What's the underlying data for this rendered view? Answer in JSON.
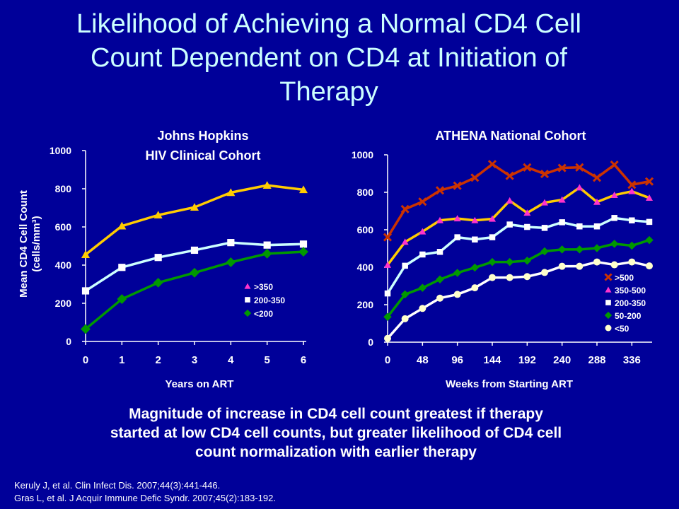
{
  "title_lines": [
    "Likelihood of Achieving a Normal CD4 Cell",
    "Count Dependent on CD4 at Initiation of",
    "Therapy"
  ],
  "caption_lines": [
    "Magnitude of increase in CD4 cell count greatest if therapy",
    "started at low CD4 cell counts, but greater likelihood of CD4 cell",
    "count normalization with earlier therapy"
  ],
  "references": [
    "Keruly J, et al. Clin Infect Dis. 2007;44(3):441-446.",
    "Gras L, et al. J Acquir Immune Defic Syndr. 2007;45(2):183-192."
  ],
  "chart_data": [
    {
      "type": "line",
      "title_lines": [
        "Johns Hopkins",
        "HIV Clinical Cohort"
      ],
      "xlabel": "Years on ART",
      "ylabel_line1": "Mean CD4 Cell Count",
      "ylabel_line2": "(cells/mm³)",
      "x": [
        0,
        1,
        2,
        3,
        4,
        5,
        6
      ],
      "xlim": [
        0,
        6
      ],
      "xticks": [
        0,
        1,
        2,
        3,
        4,
        5,
        6
      ],
      "ylim": [
        0,
        1000
      ],
      "yticks": [
        0,
        200,
        400,
        600,
        800,
        1000
      ],
      "legend_position": "lower-right",
      "series": [
        {
          "name": ">350",
          "color": "#FFCC00",
          "marker": "triangle",
          "marker_color": "#FFCC00",
          "legend_marker_color": "#FF33CC",
          "values": [
            455,
            605,
            662,
            703,
            780,
            818,
            795
          ]
        },
        {
          "name": "200-350",
          "color": "#CCFFFF",
          "marker": "square",
          "marker_color": "#FFFFFF",
          "legend_marker_color": "#FFFFFF",
          "values": [
            265,
            388,
            440,
            478,
            518,
            505,
            510
          ]
        },
        {
          "name": "<200",
          "color": "#009900",
          "marker": "diamond",
          "marker_color": "#009900",
          "legend_marker_color": "#009900",
          "values": [
            65,
            222,
            308,
            360,
            415,
            460,
            470
          ]
        }
      ]
    },
    {
      "type": "line",
      "title_lines": [
        "ATHENA National Cohort"
      ],
      "xlabel": "Weeks from Starting ART",
      "x": [
        0,
        24,
        48,
        72,
        96,
        120,
        144,
        168,
        192,
        216,
        240,
        264,
        288,
        312,
        336,
        360
      ],
      "xlim": [
        0,
        360
      ],
      "xticks": [
        0,
        48,
        96,
        144,
        192,
        240,
        288,
        336
      ],
      "ylim": [
        0,
        1000
      ],
      "yticks": [
        0,
        200,
        400,
        600,
        800,
        1000
      ],
      "legend_position": "lower-right",
      "series": [
        {
          "name": ">500",
          "color": "#CC3300",
          "marker": "x",
          "marker_color": "#CC3300",
          "legend_marker_color": "#CC3300",
          "values": [
            560,
            710,
            750,
            810,
            835,
            878,
            950,
            888,
            933,
            898,
            930,
            933,
            878,
            947,
            840,
            858
          ]
        },
        {
          "name": "350-500",
          "color": "#FFCC00",
          "marker": "triangle",
          "marker_color": "#FF33CC",
          "legend_marker_color": "#FF33CC",
          "values": [
            412,
            535,
            590,
            650,
            660,
            650,
            658,
            755,
            690,
            745,
            760,
            825,
            748,
            785,
            805,
            770
          ]
        },
        {
          "name": "200-350",
          "color": "#CCFFFF",
          "marker": "square",
          "marker_color": "#FFFFFF",
          "legend_marker_color": "#FFFFFF",
          "values": [
            260,
            408,
            468,
            482,
            560,
            548,
            560,
            628,
            615,
            610,
            640,
            618,
            618,
            663,
            650,
            642
          ]
        },
        {
          "name": "50-200",
          "color": "#009900",
          "marker": "diamond",
          "marker_color": "#009900",
          "legend_marker_color": "#009900",
          "values": [
            135,
            255,
            290,
            335,
            370,
            398,
            428,
            428,
            435,
            485,
            495,
            495,
            502,
            525,
            515,
            545
          ]
        },
        {
          "name": "<50",
          "color": "#FFFFFF",
          "marker": "circle",
          "marker_color": "#FFFFCC",
          "legend_marker_color": "#FFFFCC",
          "values": [
            20,
            125,
            180,
            235,
            255,
            290,
            345,
            345,
            350,
            372,
            405,
            405,
            428,
            413,
            428,
            407
          ]
        }
      ]
    }
  ]
}
